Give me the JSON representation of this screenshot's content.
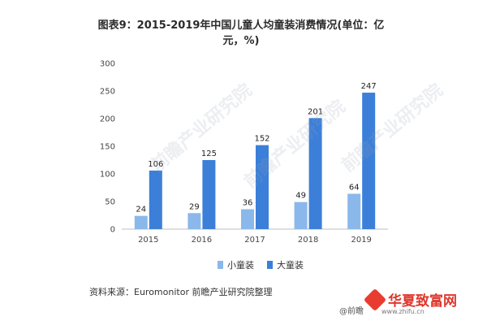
{
  "title": "图表9：2015-2019年中国儿童人均童装消费情况(单位：亿元，%)",
  "source": "资料来源：Euromonitor 前瞻产业研究院整理",
  "watermark": {
    "brand": "华夏致富网",
    "url": "www.zhifu.cn",
    "prefix": "@前瞻",
    "diagonal": "前瞻产业研究院"
  },
  "colors": {
    "small": "#8bb8ea",
    "large": "#3c7fd8"
  },
  "chart_data": {
    "type": "bar",
    "title": "图表9：2015-2019年中国儿童人均童装消费情况(单位：亿元，%)",
    "categories": [
      "2015",
      "2016",
      "2017",
      "2018",
      "2019"
    ],
    "series": [
      {
        "name": "小童装",
        "values": [
          24,
          29,
          36,
          49,
          64
        ]
      },
      {
        "name": "大童装",
        "values": [
          106,
          125,
          152,
          201,
          247
        ]
      }
    ],
    "ylim": [
      0,
      300
    ],
    "yticks": [
      0,
      50,
      100,
      150,
      200,
      250,
      300
    ],
    "grid": false,
    "legend_position": "bottom"
  }
}
